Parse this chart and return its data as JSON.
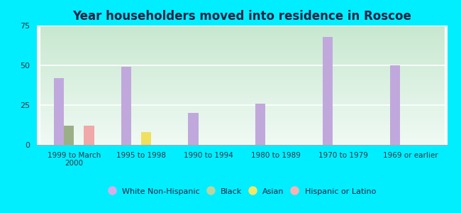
{
  "title": "Year householders moved into residence in Roscoe",
  "categories": [
    "1999 to March\n2000",
    "1995 to 1998",
    "1990 to 1994",
    "1980 to 1989",
    "1970 to 1979",
    "1969 or earlier"
  ],
  "series": {
    "White Non-Hispanic": [
      42,
      49,
      20,
      26,
      68,
      50
    ],
    "Black": [
      12,
      0,
      0,
      0,
      0,
      0
    ],
    "Asian": [
      0,
      8,
      0,
      0,
      0,
      0
    ],
    "Hispanic or Latino": [
      12,
      0,
      0,
      0,
      0,
      0
    ]
  },
  "bar_colors": {
    "White Non-Hispanic": "#c0a8dc",
    "Black": "#9aaf88",
    "Asian": "#f0e060",
    "Hispanic or Latino": "#f0a8a8"
  },
  "legend_colors": {
    "White Non-Hispanic": "#d4aee8",
    "Black": "#b8d4a0",
    "Asian": "#f0e868",
    "Hispanic or Latino": "#f4b4b4"
  },
  "ylim": [
    0,
    75
  ],
  "yticks": [
    0,
    25,
    50,
    75
  ],
  "outer_bg": "#00eeff",
  "bar_width": 0.15,
  "title_color": "#222244",
  "tick_color": "#333344"
}
